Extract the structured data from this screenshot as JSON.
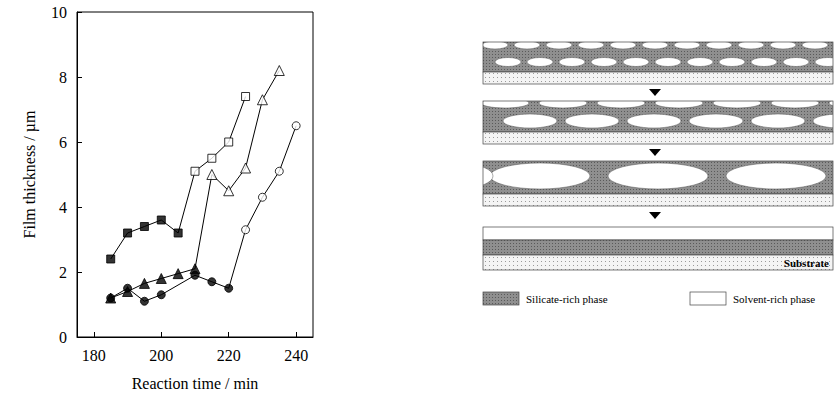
{
  "chart_data": {
    "type": "line",
    "x_label": "Reaction time / min",
    "y_label": "Film thickness / µm",
    "xlim": [
      175,
      245
    ],
    "xticks": [
      180,
      200,
      220,
      240
    ],
    "ylim": [
      0,
      10
    ],
    "yticks": [
      0,
      2,
      4,
      6,
      8,
      10
    ],
    "grid": false,
    "series": [
      {
        "marker": "square",
        "color": "#000000",
        "x": [
          185,
          190,
          195,
          200,
          205
        ],
        "values": [
          2.4,
          3.2,
          3.4,
          3.6,
          3.2
        ]
      },
      {
        "marker": "square-open",
        "color": "#000000",
        "x": [
          210,
          215,
          220,
          225
        ],
        "values": [
          5.1,
          5.5,
          6.0,
          7.4
        ]
      },
      {
        "marker": "triangle",
        "color": "#000000",
        "x": [
          185,
          190,
          195,
          200,
          205,
          210
        ],
        "values": [
          1.2,
          1.4,
          1.65,
          1.8,
          1.95,
          2.1
        ]
      },
      {
        "marker": "triangle-open",
        "color": "#000000",
        "x": [
          215,
          220,
          225,
          230,
          235
        ],
        "values": [
          5.0,
          4.5,
          5.2,
          7.3,
          8.2
        ]
      },
      {
        "marker": "circle",
        "color": "#000000",
        "x": [
          185,
          190,
          195,
          200,
          210,
          215,
          220
        ],
        "values": [
          1.2,
          1.5,
          1.1,
          1.3,
          1.9,
          1.7,
          1.5
        ]
      },
      {
        "marker": "circle-open",
        "color": "#000000",
        "x": [
          225,
          230,
          235,
          240
        ],
        "values": [
          3.3,
          4.3,
          5.1,
          6.5
        ]
      }
    ]
  },
  "diagram": {
    "substrate_label": "Substrate",
    "phases": [
      {
        "label": "Silicate-rich phase"
      },
      {
        "label": "Solvent-rich phase"
      }
    ]
  }
}
